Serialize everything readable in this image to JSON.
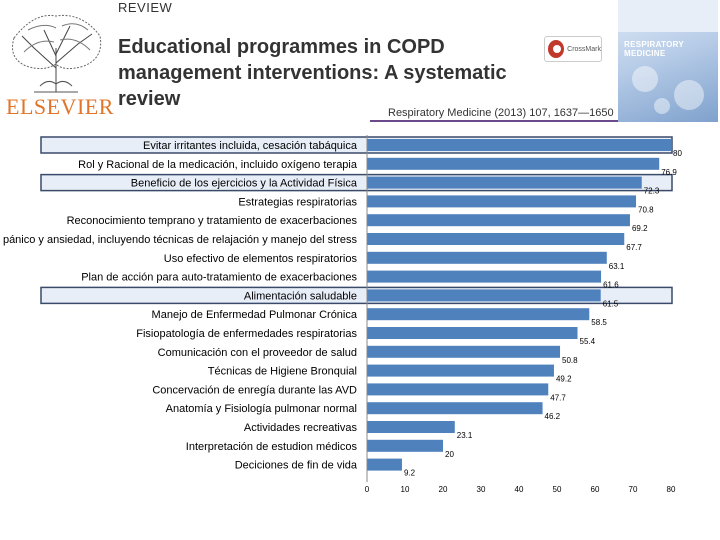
{
  "header": {
    "section_label": "REVIEW",
    "title": "Educational programmes in COPD management interventions: A systematic review",
    "publisher": "ELSEVIER",
    "crossmark": "CrossMark",
    "journal_cover_title": "RESPIRATORY MEDICINE",
    "citation": "Respiratory Medicine (2013) 107, 1637—1650"
  },
  "colors": {
    "bar": "#4f81bd",
    "highlight_fill": "#e8eef8",
    "highlight_border": "#3a4a6a",
    "publisher_orange": "#e0742a"
  },
  "chart_data": {
    "type": "bar",
    "orientation": "horizontal",
    "categories": [
      "Evitar irritantes incluida, cesación tabáquica",
      "Rol y Racional de la medicación, incluido oxígeno terapia",
      "Beneficio de los ejercicios y la Actividad Física",
      "Estrategias respiratorias",
      "Reconocimiento temprano y tratamiento de exacerbaciones",
      "Control de pánico y ansiedad, incluyendo técnicas de relajación y manejo del stress",
      "Uso efectivo de elementos respiratorios",
      "Plan de acción para auto-tratamiento de exacerbaciones",
      "Alimentación saludable",
      "Manejo de Enfermedad Pulmonar Crónica",
      "Fisiopatología de enfermedades respiratorias",
      "Comunicación con el proveedor de salud",
      "Técnicas de Higiene Bronquial",
      "Concervación de enregía durante las AVD",
      "Anatomía y Fisiología pulmonar normal",
      "Actividades recreativas",
      "Interpretación de estudion médicos",
      "Deciciones de fin de vida"
    ],
    "values": [
      80,
      76.9,
      72.3,
      70.8,
      69.2,
      67.7,
      63.1,
      61.6,
      61.5,
      58.5,
      55.4,
      50.8,
      49.2,
      47.7,
      46.2,
      23.1,
      20,
      9.2
    ],
    "highlighted": [
      "Evitar irritantes incluida, cesación tabáquica",
      "Beneficio de los ejercicios y la Actividad Física",
      "Alimentación saludable"
    ],
    "xlim": [
      0,
      80
    ],
    "xticks": [
      0,
      10,
      20,
      30,
      40,
      50,
      60,
      70,
      80
    ],
    "grid": false,
    "legend": "none"
  }
}
